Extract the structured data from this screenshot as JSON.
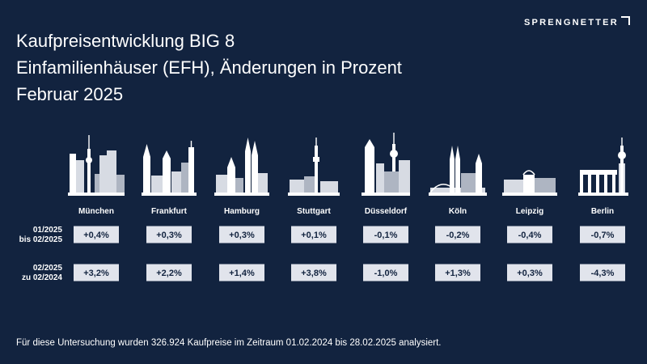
{
  "header": {
    "title": "Kaufpreisentwicklung BIG 8",
    "subtitle": "Einfamilienhäuser (EFH), Änderungen in Prozent",
    "date": "Februar 2025"
  },
  "logo": {
    "text": "SPRENGNETTER"
  },
  "footnote": "Für diese Untersuchung wurden 326.924 Kaufpreise im Zeitraum 01.02.2024 bis 28.02.2025 analysiert.",
  "colors": {
    "background": "#12233f",
    "tile": "#e1e4ec",
    "tile_text": "#12233f",
    "skyline": "#ffffff"
  },
  "chart_data": {
    "type": "table",
    "columns": [
      "München",
      "Frankfurt",
      "Hamburg",
      "Stuttgart",
      "Düsseldorf",
      "Köln",
      "Leipzig",
      "Berlin"
    ],
    "rows": [
      {
        "label_lines": [
          "01/2025",
          "bis 02/2025"
        ],
        "values": [
          0.4,
          0.3,
          0.3,
          0.1,
          -0.1,
          -0.2,
          -0.4,
          -0.7
        ],
        "labels": [
          "+0,4%",
          "+0,3%",
          "+0,3%",
          "+0,1%",
          "-0,1%",
          "-0,2%",
          "-0,4%",
          "-0,7%"
        ]
      },
      {
        "label_lines": [
          "02/2025",
          "zu 02/2024"
        ],
        "values": [
          3.2,
          2.2,
          1.4,
          3.8,
          -1.0,
          1.3,
          0.3,
          -4.3
        ],
        "labels": [
          "+3,2%",
          "+2,2%",
          "+1,4%",
          "+3,8%",
          "-1,0%",
          "+1,3%",
          "+0,3%",
          "-4,3%"
        ]
      }
    ]
  }
}
